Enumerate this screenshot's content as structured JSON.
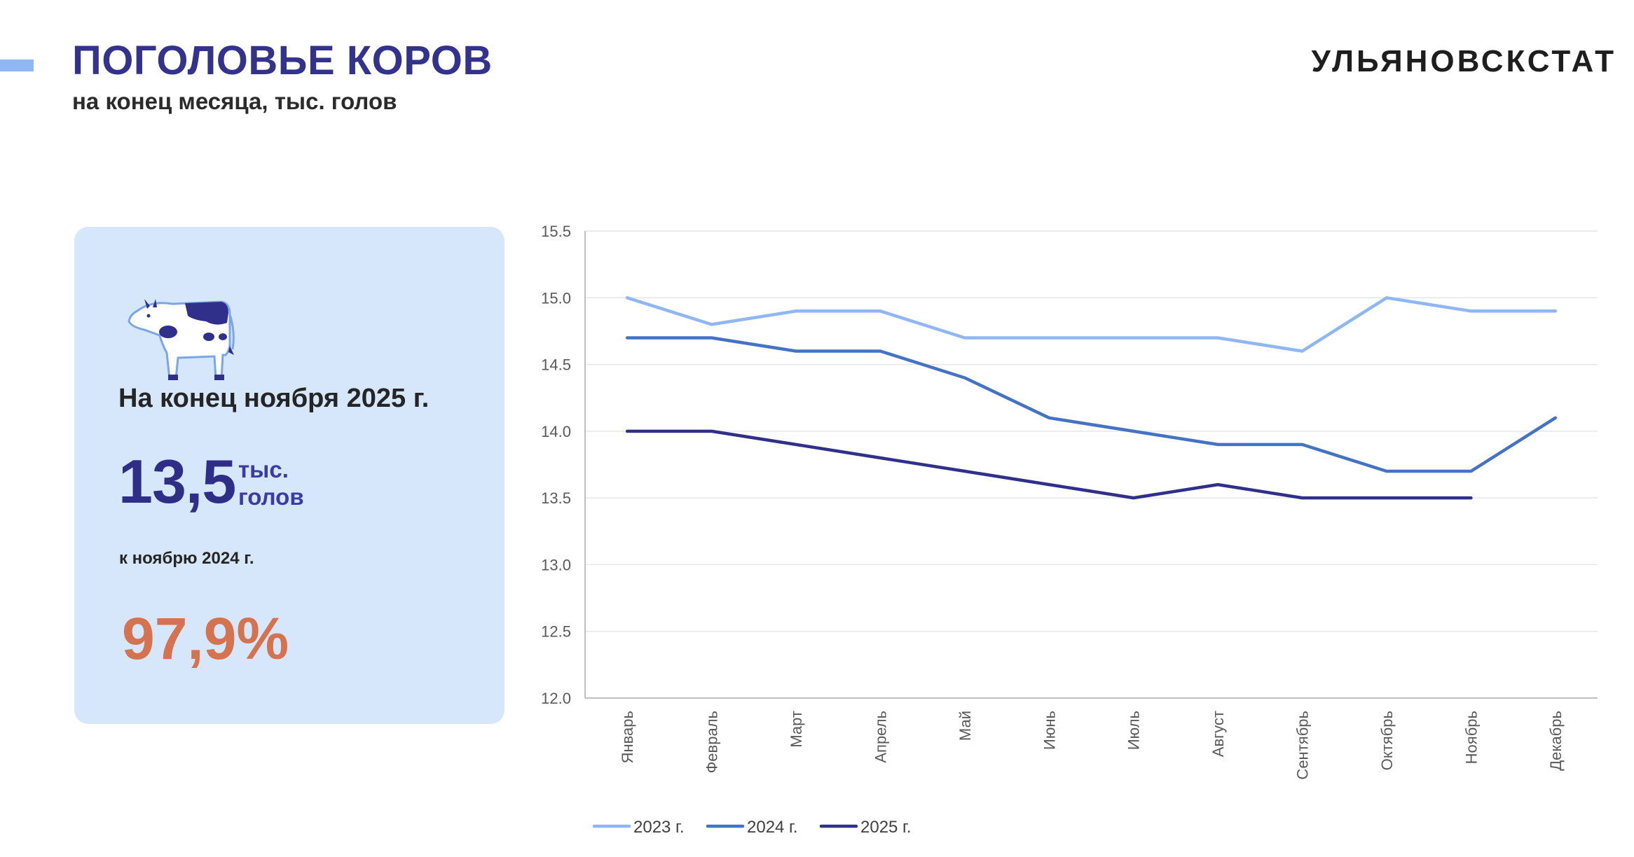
{
  "header": {
    "title": "ПОГОЛОВЬЕ КОРОВ",
    "subtitle": "на конец месяца, тыс. голов",
    "brand": "УЛЬЯНОВСКСТАТ"
  },
  "card": {
    "heading": "На конец ноября 2025 г.",
    "value": "13,5",
    "unit_line1": "тыс.",
    "unit_line2": "голов",
    "compare_label": "к ноябрю 2024 г.",
    "percent": "97,9%"
  },
  "colors": {
    "accent": "#8fb7f3",
    "title": "#33338c",
    "card_bg": "#d6e6fb",
    "percent": "#d5724f",
    "series_2023": "#8fb7f3",
    "series_2024": "#4472c4",
    "series_2025": "#30308a"
  },
  "icons": {
    "cow": "cow-icon"
  },
  "chart_data": {
    "type": "line",
    "title": "",
    "xlabel": "",
    "ylabel": "",
    "ylim": [
      12.0,
      15.5
    ],
    "y_ticks": [
      "12.0",
      "12.5",
      "13.0",
      "13.5",
      "14.0",
      "14.5",
      "15.0",
      "15.5"
    ],
    "grid": true,
    "legend_position": "bottom",
    "categories": [
      "Январь",
      "Февраль",
      "Март",
      "Апрель",
      "Май",
      "Июнь",
      "Июль",
      "Август",
      "Сентябрь",
      "Октябрь",
      "Ноябрь",
      "Декабрь"
    ],
    "series": [
      {
        "name": "2023 г.",
        "color": "#8fb7f3",
        "values": [
          15.0,
          14.8,
          14.9,
          14.9,
          14.7,
          14.7,
          14.7,
          14.7,
          14.6,
          15.0,
          14.9,
          14.9
        ]
      },
      {
        "name": "2024 г.",
        "color": "#4472c4",
        "values": [
          14.7,
          14.7,
          14.6,
          14.6,
          14.4,
          14.1,
          14.0,
          13.9,
          13.9,
          13.7,
          13.7,
          14.1
        ]
      },
      {
        "name": "2025 г.",
        "color": "#30308a",
        "values": [
          14.0,
          14.0,
          13.9,
          13.8,
          13.7,
          13.6,
          13.5,
          13.6,
          13.5,
          13.5,
          13.5,
          null
        ]
      }
    ]
  }
}
